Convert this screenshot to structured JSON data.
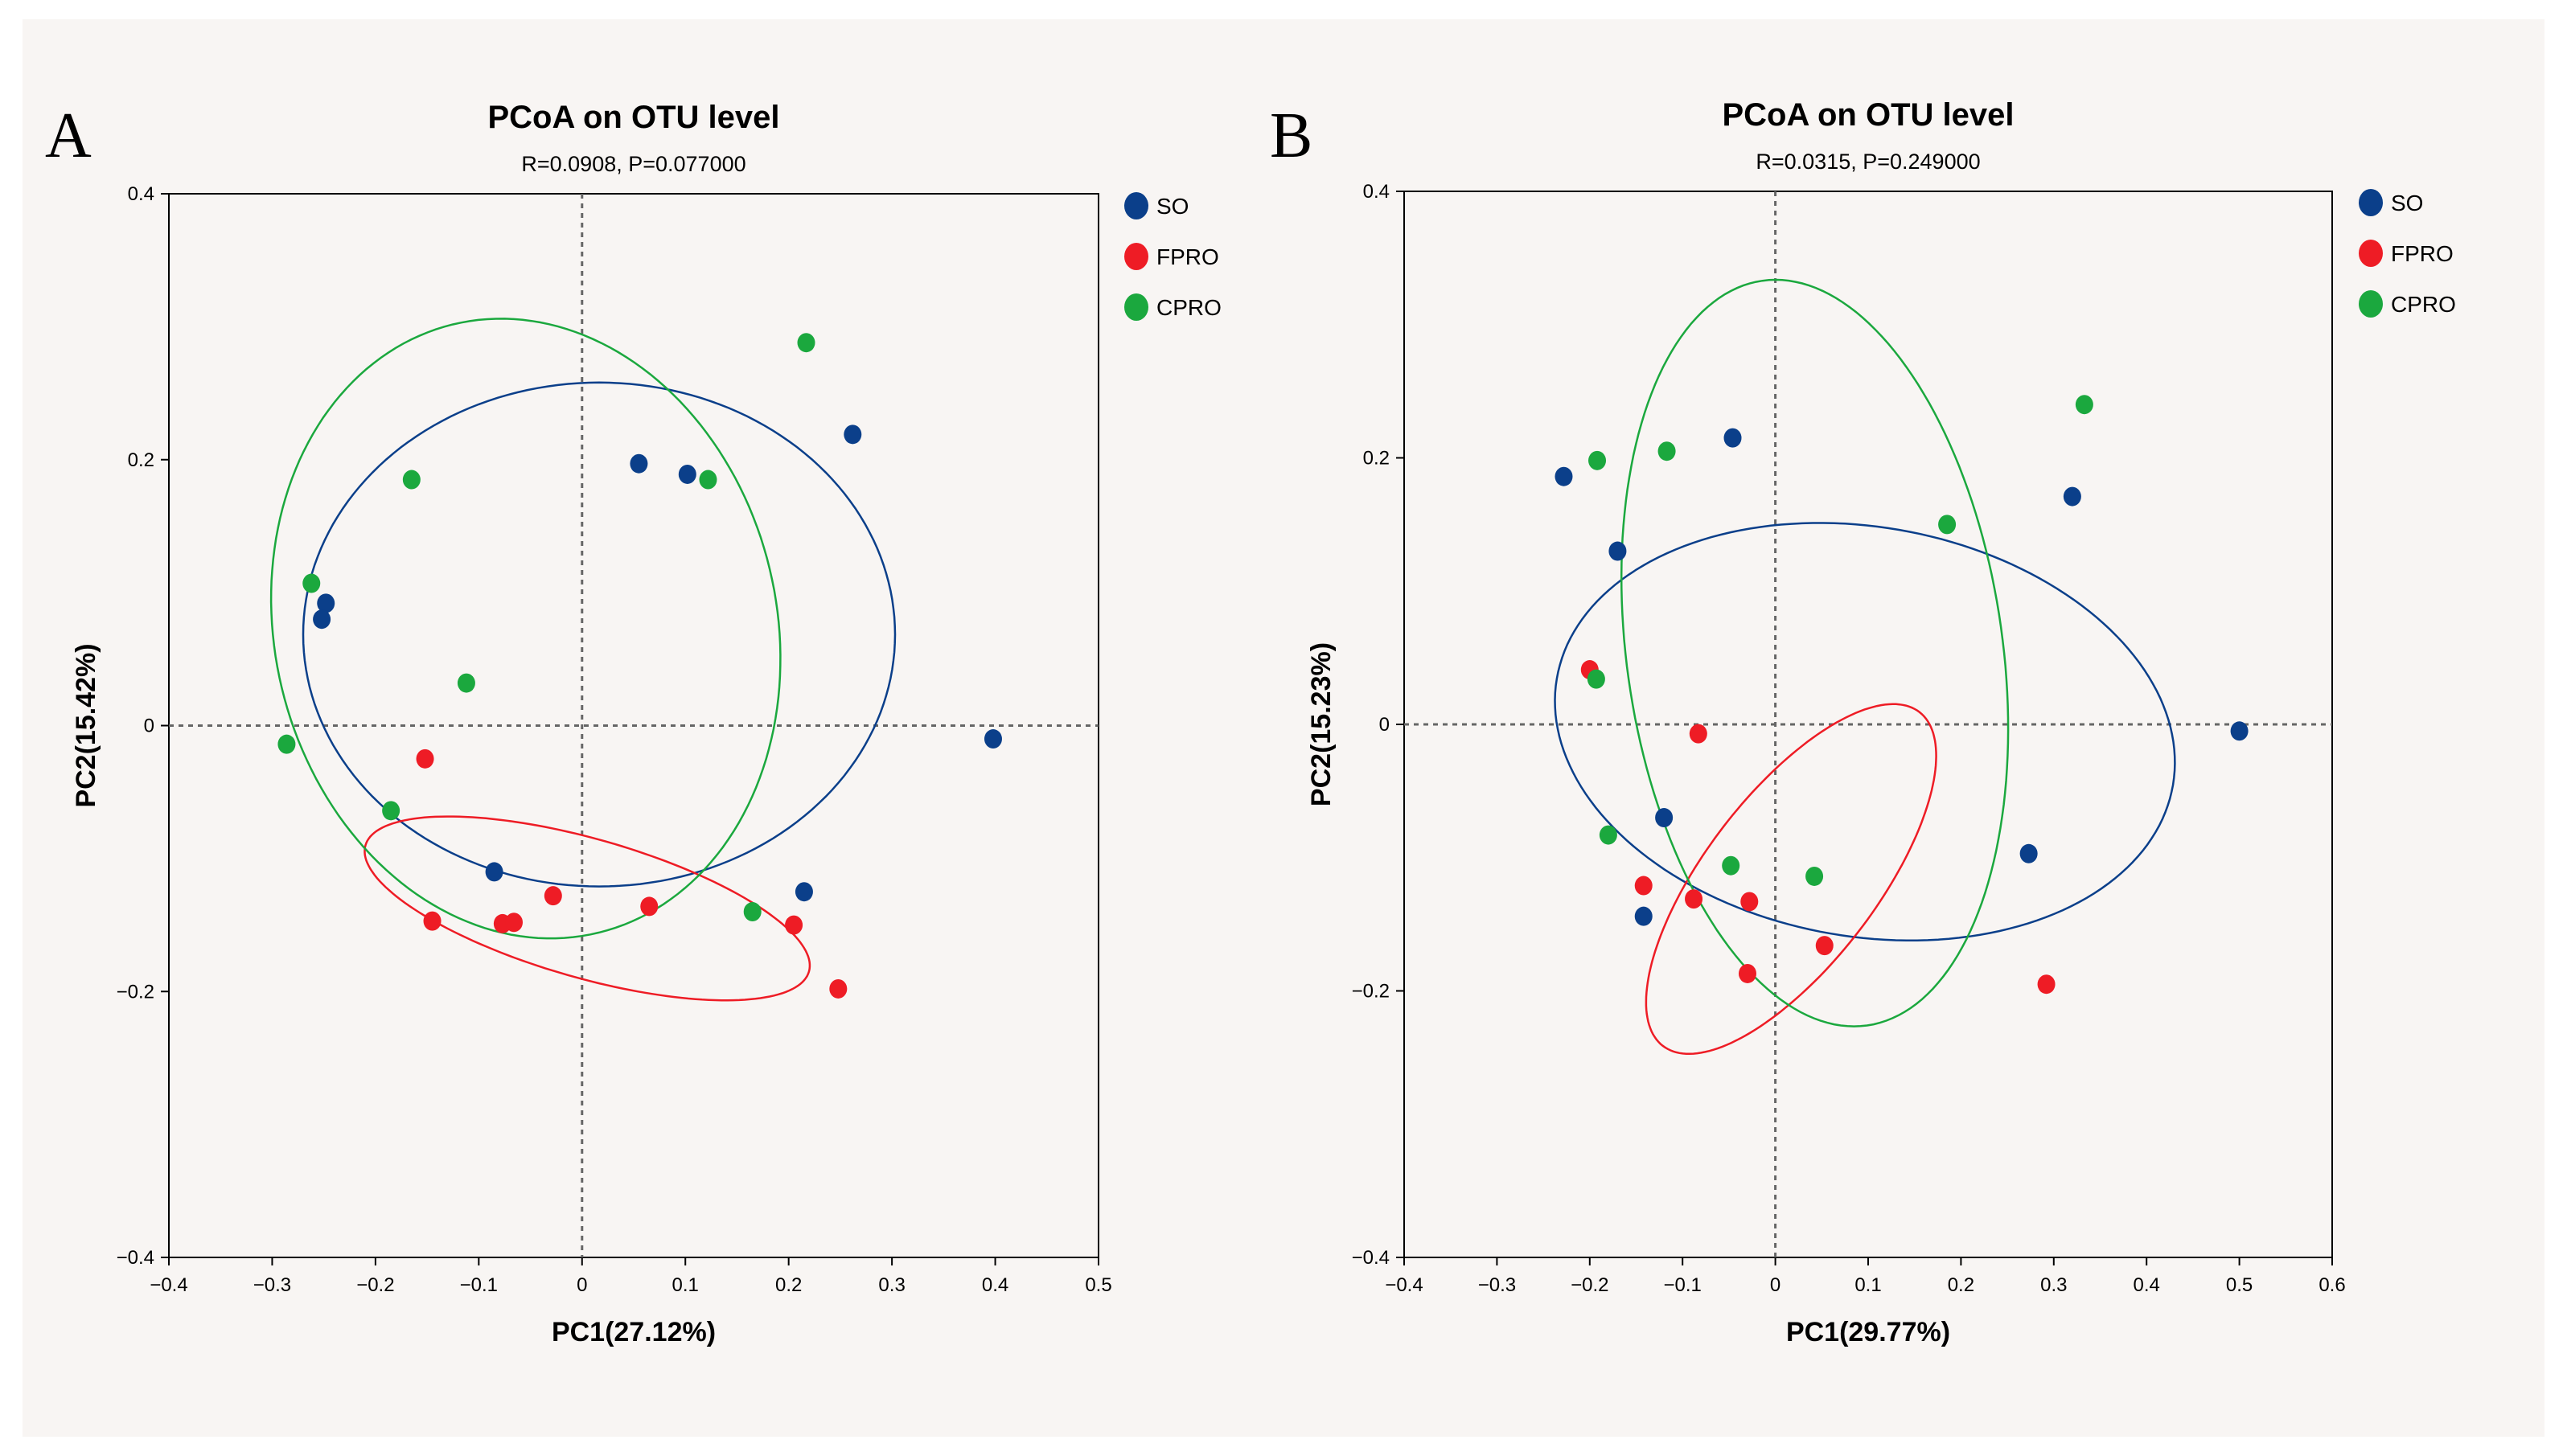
{
  "chart_data": [
    {
      "type": "scatter",
      "panel_label": "A",
      "title": "PCoA on OTU level",
      "subtitle": "R=0.0908, P=0.077000",
      "xlabel": "PC1(27.12%)",
      "ylabel": "PC2(15.42%)",
      "xlim": [
        -0.4,
        0.5
      ],
      "ylim": [
        -0.4,
        0.4
      ],
      "xticks": [
        -0.4,
        -0.3,
        -0.2,
        -0.1,
        0,
        0.1,
        0.2,
        0.3,
        0.4,
        0.5
      ],
      "yticks": [
        -0.4,
        -0.2,
        0,
        0.2,
        0.4
      ],
      "xtick_labels": [
        "−0.4",
        "−0.3",
        "−0.2",
        "−0.1",
        "0",
        "0.1",
        "0.2",
        "0.3",
        "0.4",
        "0.5"
      ],
      "ytick_labels": [
        "−0.4",
        "−0.2",
        "0",
        "0.2",
        "0.4"
      ],
      "reference_lines": {
        "x": 0,
        "y": 0,
        "style": "dotted"
      },
      "legend_position": "right",
      "series": [
        {
          "name": "SO",
          "color": "#0b3f8a",
          "points": [
            [
              0.055,
              0.197
            ],
            [
              0.102,
              0.189
            ],
            [
              0.262,
              0.219
            ],
            [
              -0.248,
              0.092
            ],
            [
              -0.252,
              0.08
            ],
            [
              0.398,
              -0.01
            ],
            [
              -0.085,
              -0.11
            ],
            [
              0.215,
              -0.125
            ]
          ],
          "ellipse": {
            "cx": 0.0165,
            "cy": 0.0685,
            "rx": 0.2865,
            "ry": 0.1895,
            "angle_deg": 0
          }
        },
        {
          "name": "FPRO",
          "color": "#ee1c25",
          "points": [
            [
              -0.152,
              -0.025
            ],
            [
              -0.145,
              -0.147
            ],
            [
              -0.077,
              -0.149
            ],
            [
              -0.066,
              -0.148
            ],
            [
              -0.028,
              -0.128
            ],
            [
              0.065,
              -0.136
            ],
            [
              0.205,
              -0.15
            ],
            [
              0.248,
              -0.198
            ]
          ],
          "ellipse": {
            "cx": 0.005,
            "cy": -0.1375,
            "rx": 0.22,
            "ry": 0.053,
            "angle_deg": -12
          }
        },
        {
          "name": "CPRO",
          "color": "#1ba83e",
          "points": [
            [
              0.217,
              0.288
            ],
            [
              -0.165,
              0.185
            ],
            [
              0.122,
              0.185
            ],
            [
              -0.262,
              0.107
            ],
            [
              -0.112,
              0.032
            ],
            [
              -0.286,
              -0.014
            ],
            [
              -0.185,
              -0.064
            ],
            [
              0.165,
              -0.14
            ]
          ],
          "ellipse": {
            "cx": -0.0545,
            "cy": 0.073,
            "rx": 0.253,
            "ry": 0.226,
            "angle_deg": -30
          }
        }
      ]
    },
    {
      "type": "scatter",
      "panel_label": "B",
      "title": "PCoA on OTU level",
      "subtitle": "R=0.0315, P=0.249000",
      "xlabel": "PC1(29.77%)",
      "ylabel": "PC2(15.23%)",
      "xlim": [
        -0.4,
        0.6
      ],
      "ylim": [
        -0.4,
        0.4
      ],
      "xticks": [
        -0.4,
        -0.3,
        -0.2,
        -0.1,
        0,
        0.1,
        0.2,
        0.3,
        0.4,
        0.5,
        0.6
      ],
      "yticks": [
        -0.4,
        -0.2,
        0,
        0.2,
        0.4
      ],
      "xtick_labels": [
        "−0.4",
        "−0.3",
        "−0.2",
        "−0.1",
        "0",
        "0.1",
        "0.2",
        "0.3",
        "0.4",
        "0.5",
        "0.6"
      ],
      "ytick_labels": [
        "−0.4",
        "−0.2",
        "0",
        "0.2",
        "0.4"
      ],
      "reference_lines": {
        "x": 0,
        "y": 0,
        "style": "dotted"
      },
      "legend_position": "right",
      "series": [
        {
          "name": "SO",
          "color": "#0b3f8a",
          "points": [
            [
              -0.228,
              0.186
            ],
            [
              -0.046,
              0.215
            ],
            [
              -0.17,
              0.13
            ],
            [
              0.32,
              0.171
            ],
            [
              0.5,
              -0.005
            ],
            [
              -0.12,
              -0.07
            ],
            [
              0.273,
              -0.097
            ],
            [
              -0.142,
              -0.144
            ]
          ],
          "ellipse": {
            "cx": 0.0965,
            "cy": -0.0055,
            "rx": 0.335,
            "ry": 0.1545,
            "angle_deg": -5
          }
        },
        {
          "name": "FPRO",
          "color": "#ee1c25",
          "points": [
            [
              -0.2,
              0.041
            ],
            [
              -0.083,
              -0.007
            ],
            [
              -0.142,
              -0.121
            ],
            [
              -0.088,
              -0.131
            ],
            [
              -0.028,
              -0.133
            ],
            [
              -0.03,
              -0.187
            ],
            [
              0.053,
              -0.166
            ],
            [
              0.292,
              -0.195
            ]
          ],
          "ellipse": {
            "cx": 0.017,
            "cy": -0.116,
            "rx": 0.189,
            "ry": 0.077,
            "angle_deg": 38
          }
        },
        {
          "name": "CPRO",
          "color": "#1ba83e",
          "points": [
            [
              0.333,
              0.24
            ],
            [
              -0.192,
              0.198
            ],
            [
              -0.117,
              0.205
            ],
            [
              0.185,
              0.15
            ],
            [
              -0.193,
              0.034
            ],
            [
              -0.18,
              -0.083
            ],
            [
              -0.048,
              -0.106
            ],
            [
              0.042,
              -0.114
            ]
          ],
          "ellipse": {
            "cx": 0.0425,
            "cy": 0.0535,
            "rx": 0.2865,
            "ry": 0.1995,
            "angle_deg": -73
          }
        }
      ]
    }
  ]
}
